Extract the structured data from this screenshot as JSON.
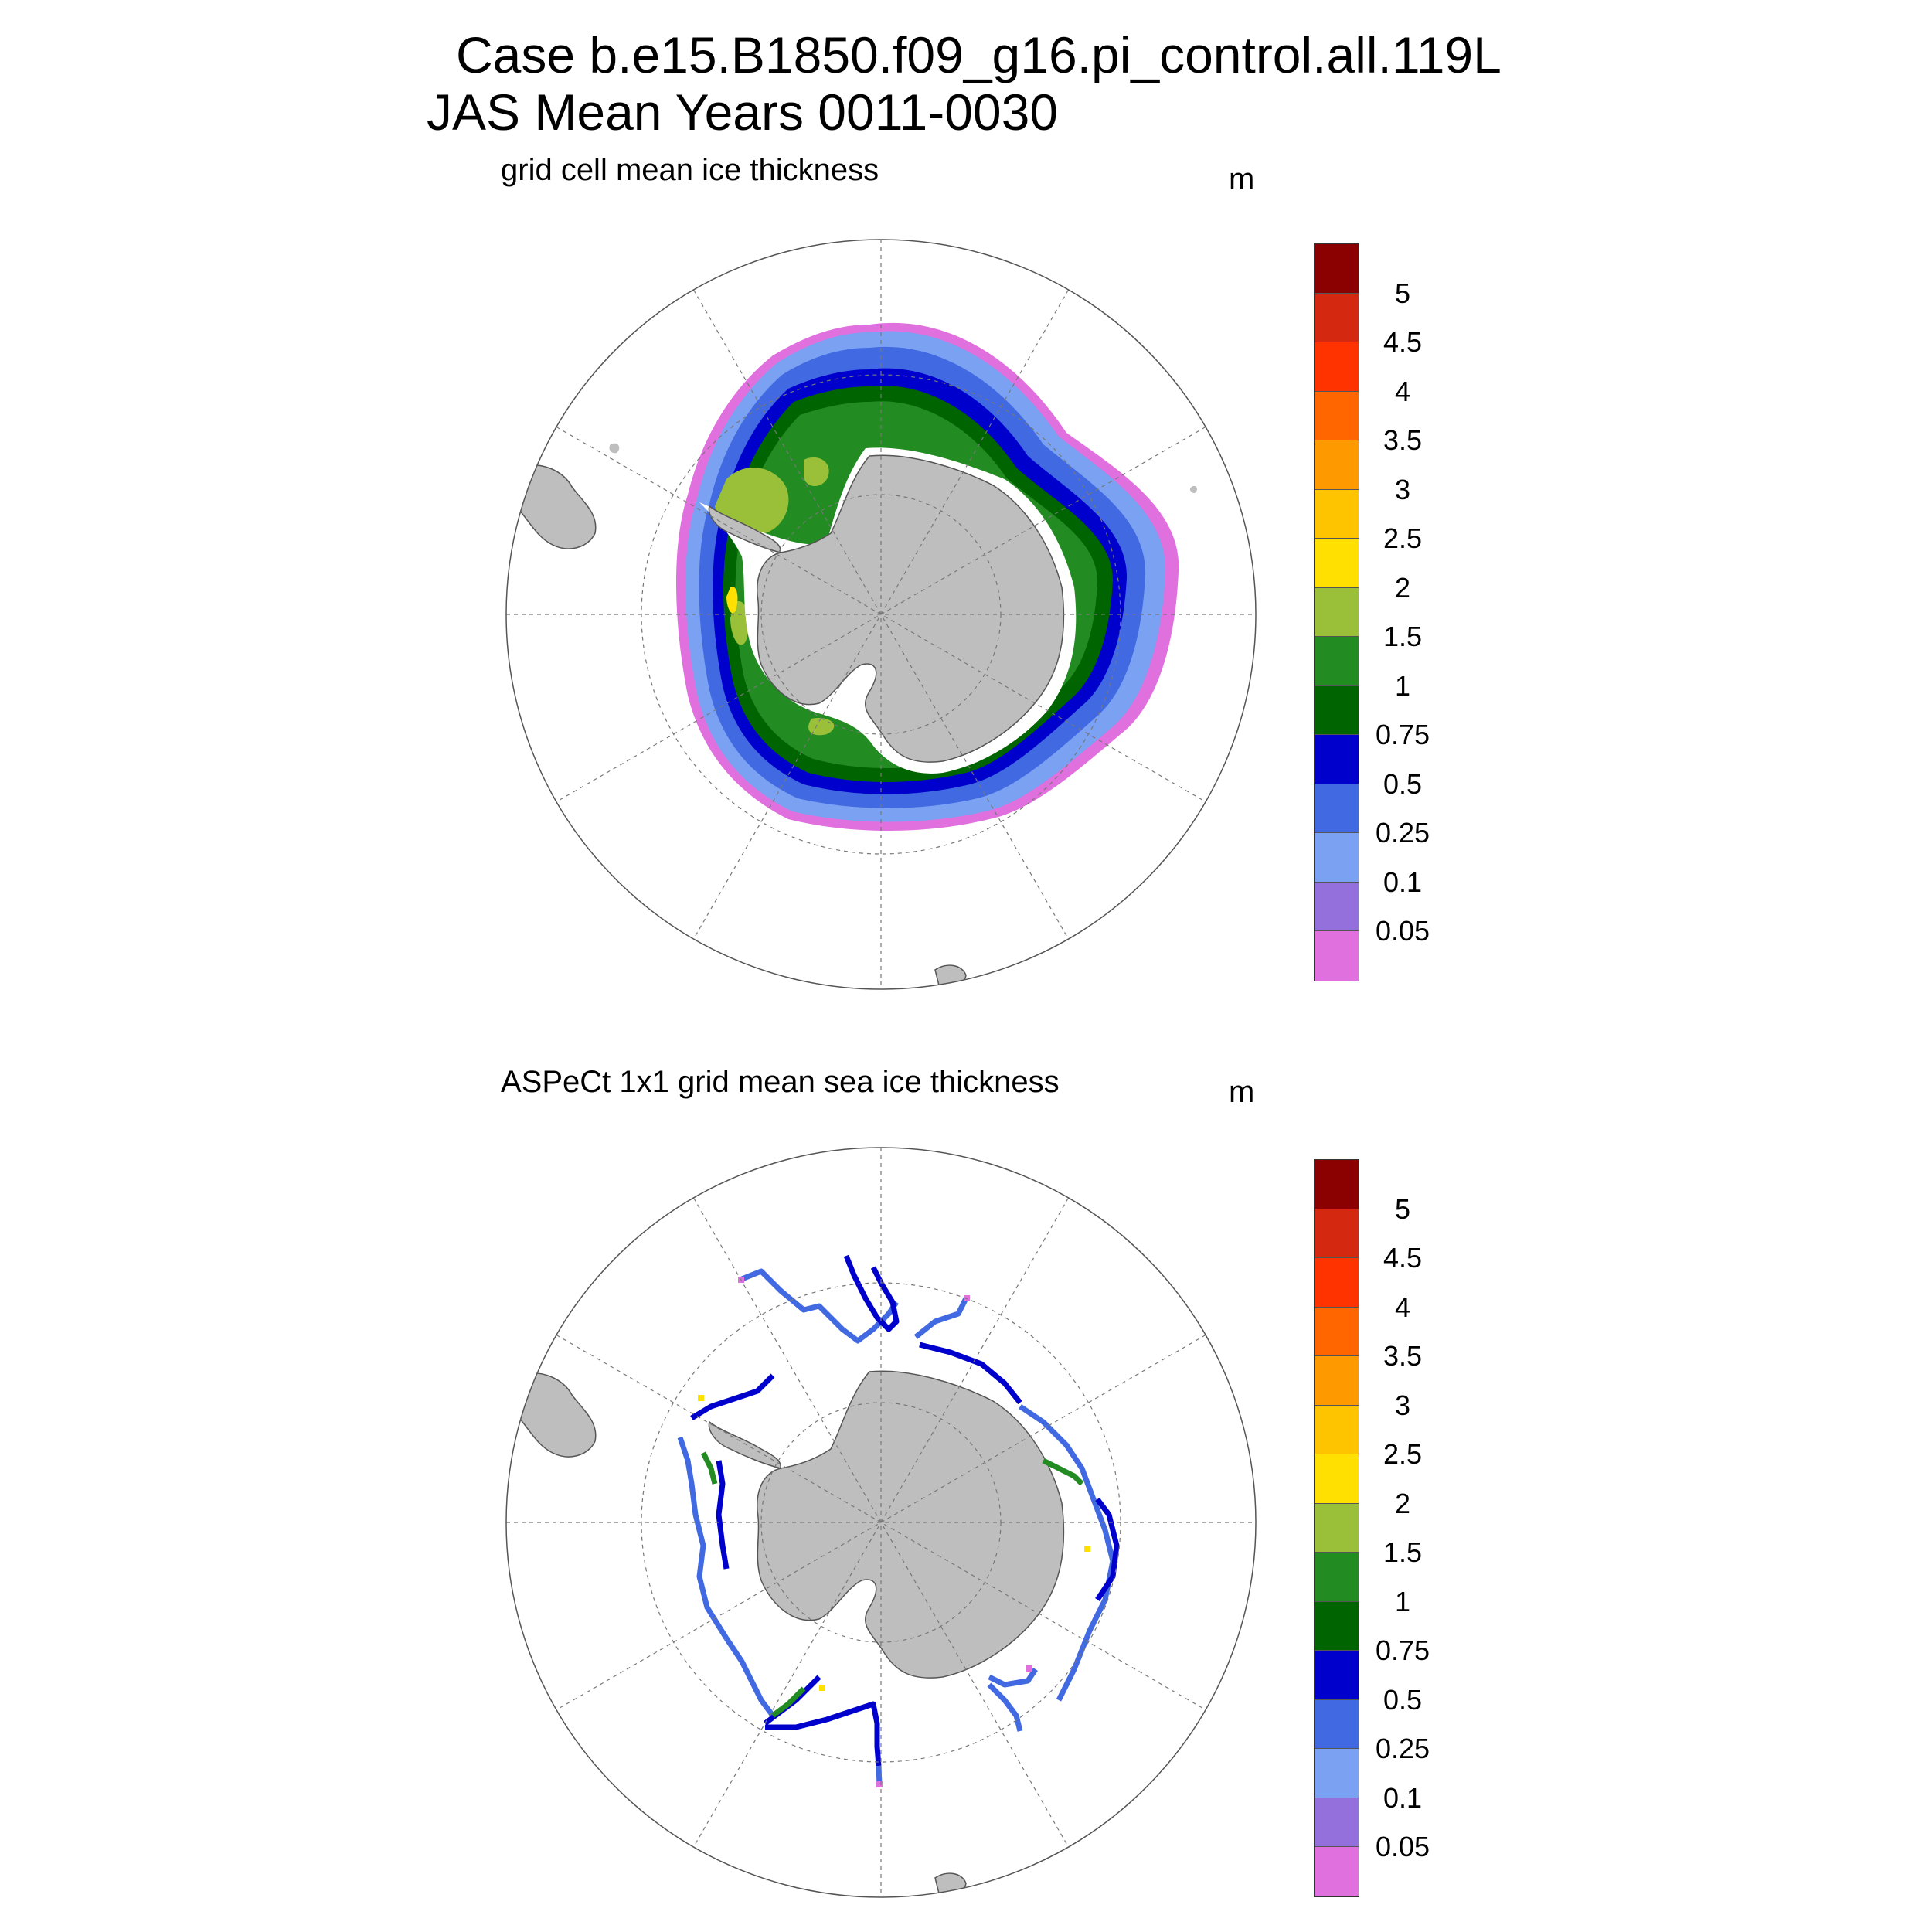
{
  "title": {
    "line1": "Case b.e15.B1850.f09_g16.pi_control.all.119L",
    "line2": "JAS Mean   Years 0011-0030"
  },
  "panels": [
    {
      "name": "model",
      "title": "grid cell mean ice thickness",
      "units": "m"
    },
    {
      "name": "obs",
      "title": "ASPeCt 1x1 grid mean sea ice thickness",
      "units": "m"
    }
  ],
  "colorbar": {
    "labels": [
      "5",
      "4.5",
      "4",
      "3.5",
      "3",
      "2.5",
      "2",
      "1.5",
      "1",
      "0.75",
      "0.5",
      "0.25",
      "0.1",
      "0.05"
    ],
    "colors": [
      "#8b0000",
      "#d42810",
      "#ff3300",
      "#ff6600",
      "#ff9900",
      "#ffc400",
      "#ffe000",
      "#9ac03a",
      "#228b22",
      "#006400",
      "#0000cd",
      "#4169e1",
      "#7ba1f2",
      "#9370db",
      "#e070dd"
    ]
  },
  "map_colors": {
    "land": "#bebebe",
    "ice_edge": "#e070dd",
    "grid": "#777777"
  }
}
